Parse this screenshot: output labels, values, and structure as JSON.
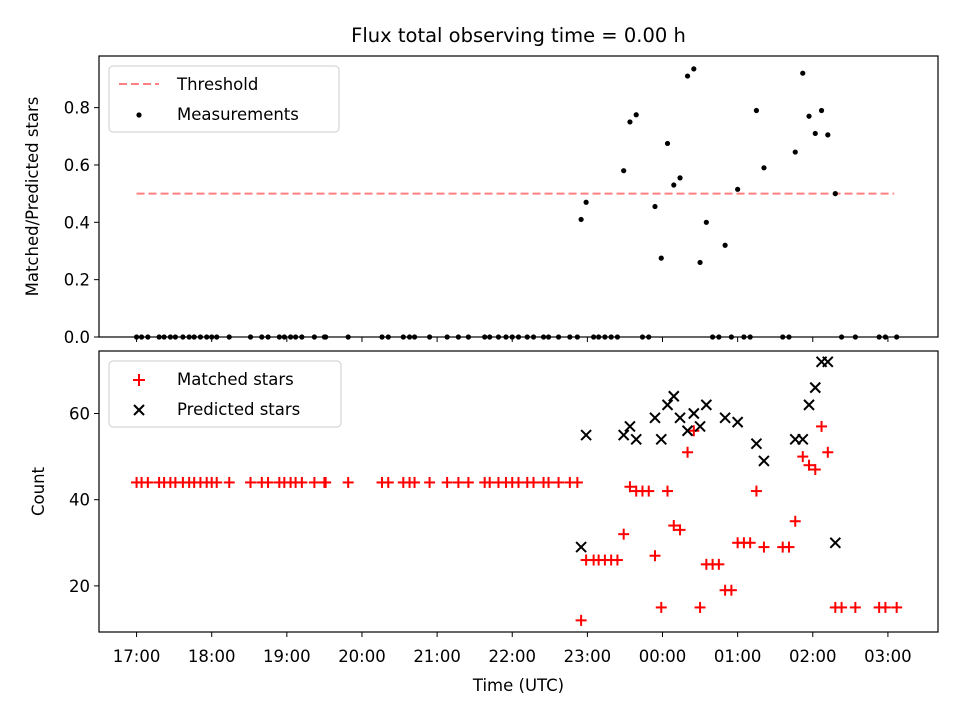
{
  "figure": {
    "title": "Flux total observing time = 0.00 h",
    "xlabel": "Time (UTC)"
  },
  "colors": {
    "threshold": "#ff8080",
    "measurement": "#000000",
    "matched": "#ff0000",
    "predicted": "#000000"
  },
  "chart_data": [
    {
      "type": "scatter",
      "ylabel": "Matched/Predicted stars",
      "ylim": [
        0,
        0.98
      ],
      "yticks": [
        0.0,
        0.2,
        0.4,
        0.6,
        0.8
      ],
      "ytick_labels": [
        "0.0",
        "0.2",
        "0.4",
        "0.6",
        "0.8"
      ],
      "xlim": [
        "16:30",
        "03:40"
      ],
      "grid": false,
      "legend_position": "top-left",
      "threshold": {
        "name": "Threshold",
        "value": 0.5,
        "x_range": [
          "17:00",
          "03:05"
        ],
        "style": "dashed"
      },
      "series": [
        {
          "name": "Measurements",
          "marker": "dot",
          "points": [
            [
              "17:00",
              0
            ],
            [
              "17:04",
              0
            ],
            [
              "17:09",
              0
            ],
            [
              "17:18",
              0
            ],
            [
              "17:22",
              0
            ],
            [
              "17:27",
              0
            ],
            [
              "17:31",
              0
            ],
            [
              "17:37",
              0
            ],
            [
              "17:42",
              0
            ],
            [
              "17:46",
              0
            ],
            [
              "17:51",
              0
            ],
            [
              "17:56",
              0
            ],
            [
              "18:00",
              0
            ],
            [
              "18:04",
              0
            ],
            [
              "18:14",
              0
            ],
            [
              "18:31",
              0
            ],
            [
              "18:40",
              0
            ],
            [
              "18:45",
              0
            ],
            [
              "18:54",
              0
            ],
            [
              "18:58",
              0
            ],
            [
              "19:03",
              0
            ],
            [
              "19:07",
              0
            ],
            [
              "19:12",
              0
            ],
            [
              "19:22",
              0
            ],
            [
              "19:30",
              0
            ],
            [
              "19:31",
              0
            ],
            [
              "19:49",
              0
            ],
            [
              "20:16",
              0
            ],
            [
              "20:21",
              0
            ],
            [
              "20:33",
              0
            ],
            [
              "20:38",
              0
            ],
            [
              "20:42",
              0
            ],
            [
              "20:54",
              0
            ],
            [
              "21:08",
              0
            ],
            [
              "21:17",
              0
            ],
            [
              "21:25",
              0
            ],
            [
              "21:38",
              0
            ],
            [
              "21:42",
              0
            ],
            [
              "21:49",
              0
            ],
            [
              "21:55",
              0
            ],
            [
              "22:00",
              0
            ],
            [
              "22:05",
              0
            ],
            [
              "22:12",
              0
            ],
            [
              "22:17",
              0
            ],
            [
              "22:25",
              0
            ],
            [
              "22:29",
              0
            ],
            [
              "22:37",
              0
            ],
            [
              "22:46",
              0
            ],
            [
              "22:52",
              0
            ],
            [
              "22:55",
              0.41
            ],
            [
              "22:59",
              0.47
            ],
            [
              "23:05",
              0
            ],
            [
              "23:09",
              0
            ],
            [
              "23:14",
              0
            ],
            [
              "23:19",
              0
            ],
            [
              "23:24",
              0
            ],
            [
              "23:29",
              0.58
            ],
            [
              "23:34",
              0.75
            ],
            [
              "23:39",
              0.775
            ],
            [
              "23:44",
              0
            ],
            [
              "23:49",
              0
            ],
            [
              "23:54",
              0.455
            ],
            [
              "23:59",
              0.275
            ],
            [
              "00:04",
              0.675
            ],
            [
              "00:09",
              0.53
            ],
            [
              "00:14",
              0.555
            ],
            [
              "00:20",
              0.91
            ],
            [
              "00:25",
              0.935
            ],
            [
              "00:30",
              0.26
            ],
            [
              "00:35",
              0.4
            ],
            [
              "00:40",
              0
            ],
            [
              "00:45",
              0
            ],
            [
              "00:50",
              0.32
            ],
            [
              "00:55",
              0
            ],
            [
              "01:00",
              0.515
            ],
            [
              "01:05",
              0
            ],
            [
              "01:10",
              0
            ],
            [
              "01:15",
              0.79
            ],
            [
              "01:21",
              0.59
            ],
            [
              "01:36",
              0
            ],
            [
              "01:41",
              0
            ],
            [
              "01:46",
              0.645
            ],
            [
              "01:52",
              0.92
            ],
            [
              "01:57",
              0.77
            ],
            [
              "02:02",
              0.71
            ],
            [
              "02:07",
              0.79
            ],
            [
              "02:12",
              0.705
            ],
            [
              "02:18",
              0.5
            ],
            [
              "02:23",
              0
            ],
            [
              "02:34",
              0
            ],
            [
              "02:53",
              0
            ],
            [
              "02:58",
              0
            ],
            [
              "03:07",
              0
            ]
          ]
        }
      ]
    },
    {
      "type": "scatter",
      "ylabel": "Count",
      "ylim": [
        9.3,
        74.5
      ],
      "yticks": [
        20,
        40,
        60
      ],
      "ytick_labels": [
        "20",
        "40",
        "60"
      ],
      "xlim": [
        "16:30",
        "03:40"
      ],
      "xticks": [
        "17:00",
        "18:00",
        "19:00",
        "20:00",
        "21:00",
        "22:00",
        "23:00",
        "00:00",
        "01:00",
        "02:00",
        "03:00"
      ],
      "grid": false,
      "legend_position": "top-left",
      "series": [
        {
          "name": "Matched stars",
          "marker": "plus",
          "points": [
            [
              "17:00",
              44
            ],
            [
              "17:04",
              44
            ],
            [
              "17:09",
              44
            ],
            [
              "17:18",
              44
            ],
            [
              "17:22",
              44
            ],
            [
              "17:27",
              44
            ],
            [
              "17:31",
              44
            ],
            [
              "17:37",
              44
            ],
            [
              "17:42",
              44
            ],
            [
              "17:46",
              44
            ],
            [
              "17:51",
              44
            ],
            [
              "17:56",
              44
            ],
            [
              "18:00",
              44
            ],
            [
              "18:04",
              44
            ],
            [
              "18:14",
              44
            ],
            [
              "18:31",
              44
            ],
            [
              "18:40",
              44
            ],
            [
              "18:45",
              44
            ],
            [
              "18:54",
              44
            ],
            [
              "18:58",
              44
            ],
            [
              "19:03",
              44
            ],
            [
              "19:07",
              44
            ],
            [
              "19:12",
              44
            ],
            [
              "19:22",
              44
            ],
            [
              "19:30",
              44
            ],
            [
              "19:31",
              44
            ],
            [
              "19:49",
              44
            ],
            [
              "20:16",
              44
            ],
            [
              "20:21",
              44
            ],
            [
              "20:33",
              44
            ],
            [
              "20:38",
              44
            ],
            [
              "20:42",
              44
            ],
            [
              "20:54",
              44
            ],
            [
              "21:08",
              44
            ],
            [
              "21:17",
              44
            ],
            [
              "21:25",
              44
            ],
            [
              "21:38",
              44
            ],
            [
              "21:42",
              44
            ],
            [
              "21:49",
              44
            ],
            [
              "21:55",
              44
            ],
            [
              "22:00",
              44
            ],
            [
              "22:05",
              44
            ],
            [
              "22:12",
              44
            ],
            [
              "22:17",
              44
            ],
            [
              "22:25",
              44
            ],
            [
              "22:29",
              44
            ],
            [
              "22:37",
              44
            ],
            [
              "22:46",
              44
            ],
            [
              "22:52",
              44
            ],
            [
              "22:55",
              12
            ],
            [
              "22:59",
              26
            ],
            [
              "23:05",
              26
            ],
            [
              "23:09",
              26
            ],
            [
              "23:14",
              26
            ],
            [
              "23:19",
              26
            ],
            [
              "23:24",
              26
            ],
            [
              "23:29",
              32
            ],
            [
              "23:34",
              43
            ],
            [
              "23:39",
              42
            ],
            [
              "23:44",
              42
            ],
            [
              "23:49",
              42
            ],
            [
              "23:54",
              27
            ],
            [
              "23:59",
              15
            ],
            [
              "00:04",
              42
            ],
            [
              "00:09",
              34
            ],
            [
              "00:14",
              33
            ],
            [
              "00:20",
              51
            ],
            [
              "00:25",
              56
            ],
            [
              "00:30",
              15
            ],
            [
              "00:35",
              25
            ],
            [
              "00:40",
              25
            ],
            [
              "00:45",
              25
            ],
            [
              "00:50",
              19
            ],
            [
              "00:55",
              19
            ],
            [
              "01:00",
              30
            ],
            [
              "01:05",
              30
            ],
            [
              "01:10",
              30
            ],
            [
              "01:15",
              42
            ],
            [
              "01:21",
              29
            ],
            [
              "01:36",
              29
            ],
            [
              "01:41",
              29
            ],
            [
              "01:46",
              35
            ],
            [
              "01:52",
              50
            ],
            [
              "01:57",
              48
            ],
            [
              "02:02",
              47
            ],
            [
              "02:07",
              57
            ],
            [
              "02:12",
              51
            ],
            [
              "02:18",
              15
            ],
            [
              "02:23",
              15
            ],
            [
              "02:34",
              15
            ],
            [
              "02:53",
              15
            ],
            [
              "02:58",
              15
            ],
            [
              "03:07",
              15
            ]
          ]
        },
        {
          "name": "Predicted stars",
          "marker": "x",
          "points": [
            [
              "22:55",
              29
            ],
            [
              "22:59",
              55
            ],
            [
              "23:29",
              55
            ],
            [
              "23:34",
              57
            ],
            [
              "23:39",
              54
            ],
            [
              "23:54",
              59
            ],
            [
              "23:59",
              54
            ],
            [
              "00:04",
              62
            ],
            [
              "00:09",
              64
            ],
            [
              "00:14",
              59
            ],
            [
              "00:20",
              56
            ],
            [
              "00:25",
              60
            ],
            [
              "00:30",
              57
            ],
            [
              "00:35",
              62
            ],
            [
              "00:50",
              59
            ],
            [
              "01:00",
              58
            ],
            [
              "01:15",
              53
            ],
            [
              "01:21",
              49
            ],
            [
              "01:46",
              54
            ],
            [
              "01:52",
              54
            ],
            [
              "01:57",
              62
            ],
            [
              "02:02",
              66
            ],
            [
              "02:07",
              72
            ],
            [
              "02:12",
              72
            ],
            [
              "02:18",
              30
            ]
          ]
        }
      ]
    }
  ]
}
